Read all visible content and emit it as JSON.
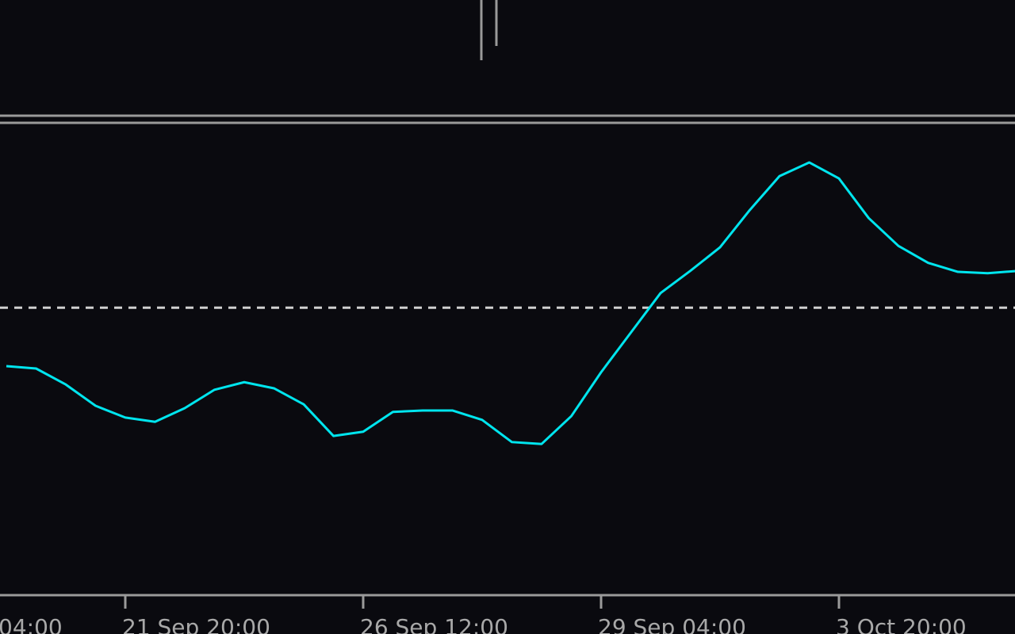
{
  "chart_data": {
    "type": "line",
    "categories": [
      "04:00",
      null,
      null,
      null,
      "21 Sep 20:00",
      null,
      null,
      null,
      null,
      null,
      null,
      null,
      "26 Sep 12:00",
      null,
      null,
      null,
      null,
      null,
      null,
      null,
      "29 Sep 04:00",
      null,
      null,
      null,
      null,
      null,
      null,
      null,
      "3 Oct 20:00",
      null,
      null,
      null,
      null,
      null,
      null
    ],
    "series": [
      {
        "color": "#00e5ee",
        "values": [
          48.4,
          47.9,
          44.5,
          40.0,
          37.5,
          36.6,
          39.5,
          43.4,
          45.0,
          43.7,
          40.3,
          33.6,
          34.5,
          38.7,
          39.0,
          39.0,
          37.0,
          32.3,
          31.9,
          37.8,
          47.1,
          55.5,
          63.9,
          68.6,
          73.6,
          81.5,
          88.7,
          91.6,
          88.2,
          79.8,
          73.9,
          70.3,
          68.4,
          68.1,
          68.6
        ]
      }
    ],
    "level": 60.8,
    "ylim": [
      0,
      100
    ]
  }
}
